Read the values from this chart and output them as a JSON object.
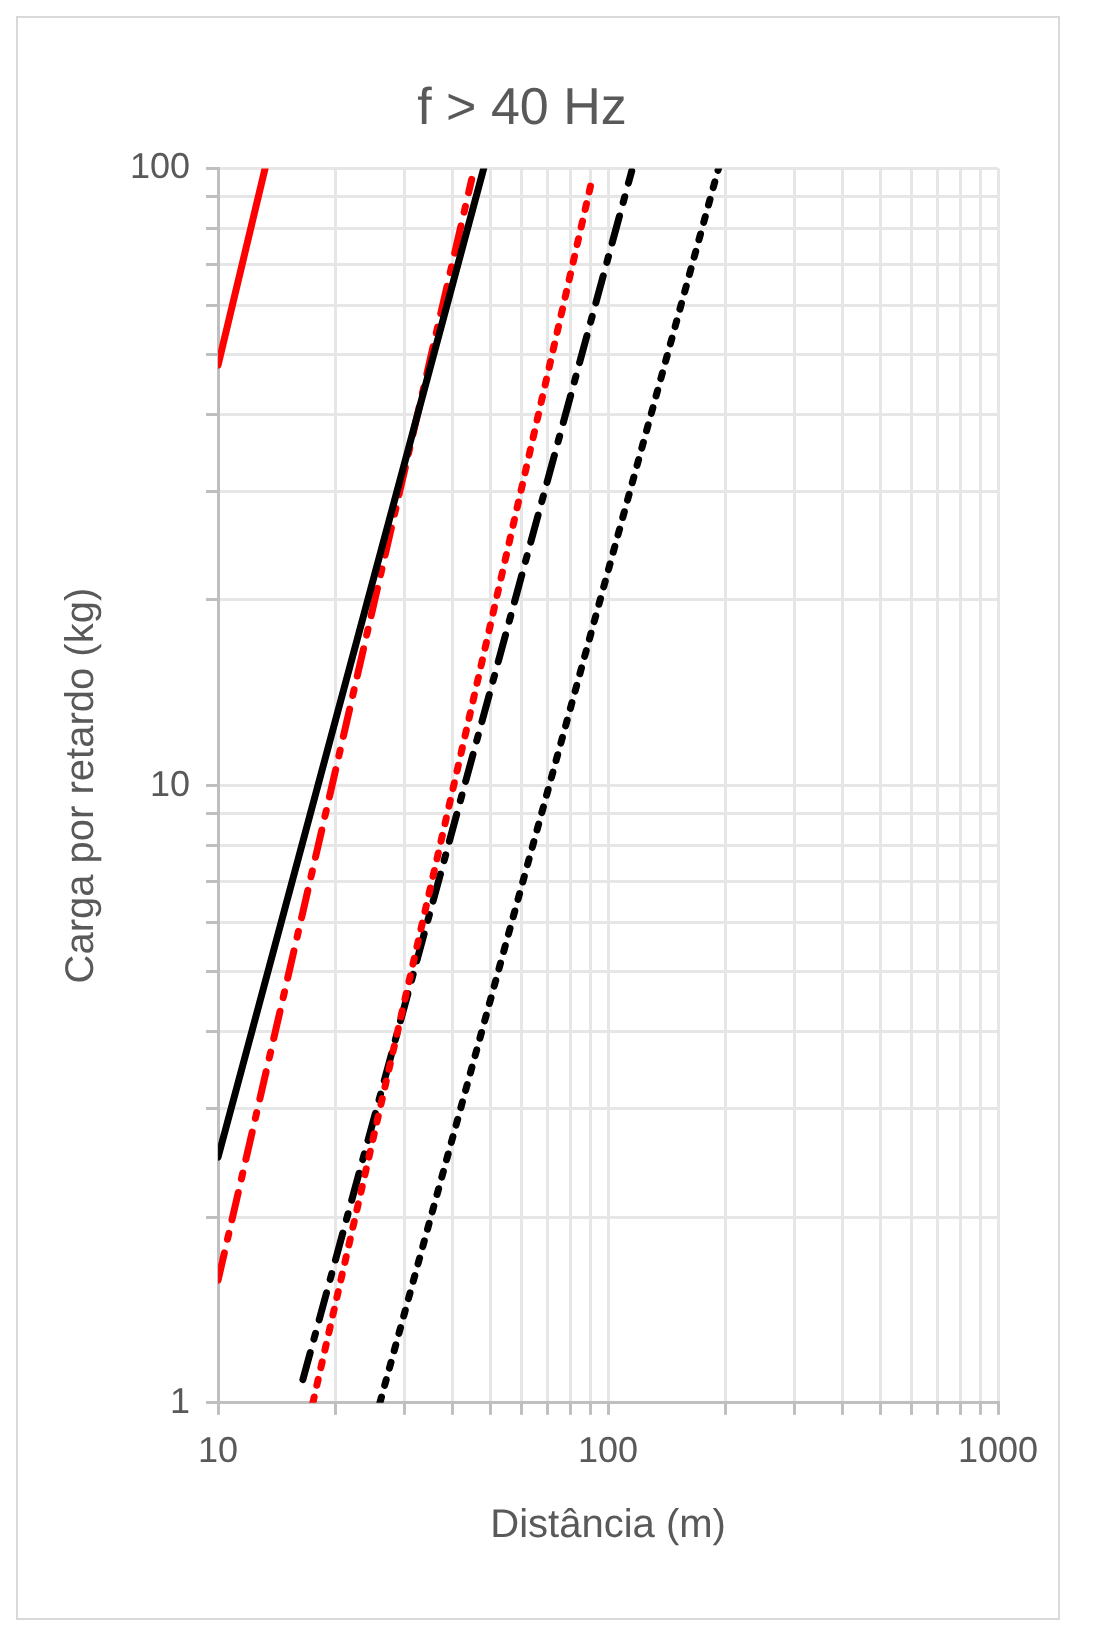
{
  "chart_data": {
    "type": "line",
    "title": "f > 40 Hz",
    "xlabel": "Distância (m)",
    "ylabel": "Carga por retardo (kg)",
    "log": "xy",
    "grid": true,
    "legend": false,
    "marker": "none",
    "xlim": [
      10,
      1000
    ],
    "ylim": [
      1,
      100
    ],
    "xticks": [
      10,
      {
        "value": 20,
        "label": null
      },
      {
        "value": 30,
        "label": null
      },
      {
        "value": 40,
        "label": null
      },
      {
        "value": 50,
        "label": null
      },
      {
        "value": 60,
        "label": null
      },
      {
        "value": 70,
        "label": null
      },
      {
        "value": 80,
        "label": null
      },
      {
        "value": 90,
        "label": null
      },
      100,
      {
        "value": 200,
        "label": null
      },
      {
        "value": 300,
        "label": null
      },
      {
        "value": 400,
        "label": null
      },
      {
        "value": 500,
        "label": null
      },
      {
        "value": 600,
        "label": null
      },
      {
        "value": 700,
        "label": null
      },
      {
        "value": 800,
        "label": null
      },
      {
        "value": 900,
        "label": null
      },
      1000
    ],
    "yticks": [
      1,
      {
        "value": 2,
        "label": null
      },
      {
        "value": 3,
        "label": null
      },
      {
        "value": 4,
        "label": null
      },
      {
        "value": 5,
        "label": null
      },
      {
        "value": 6,
        "label": null
      },
      {
        "value": 7,
        "label": null
      },
      {
        "value": 8,
        "label": null
      },
      {
        "value": 9,
        "label": null
      },
      10,
      {
        "value": 20,
        "label": null
      },
      {
        "value": 30,
        "label": null
      },
      {
        "value": 40,
        "label": null
      },
      {
        "value": 50,
        "label": null
      },
      {
        "value": 60,
        "label": null
      },
      {
        "value": 70,
        "label": null
      },
      {
        "value": 80,
        "label": null
      },
      {
        "value": 90,
        "label": null
      },
      100
    ],
    "series": [
      {
        "color": "#ff0000",
        "line_style": "solid",
        "x": [
          10,
          13.2
        ],
        "values": [
          48,
          100
        ]
      },
      {
        "color": "#000000",
        "line_style": "solid",
        "x": [
          10,
          48
        ],
        "values": [
          2.5,
          100
        ]
      },
      {
        "color": "#ff0000",
        "line_style": "dashed",
        "x": [
          10,
          44.7
        ],
        "values": [
          1.58,
          96
        ]
      },
      {
        "color": "#ff0000",
        "line_style": "dotted",
        "x": [
          17.5,
          91
        ],
        "values": [
          1,
          96
        ]
      },
      {
        "color": "#000000",
        "line_style": "dashed",
        "x": [
          16.5,
          115
        ],
        "values": [
          1.09,
          99
        ]
      },
      {
        "color": "#000000",
        "line_style": "dotted",
        "x": [
          26,
          192
        ],
        "values": [
          1,
          100
        ]
      }
    ]
  }
}
